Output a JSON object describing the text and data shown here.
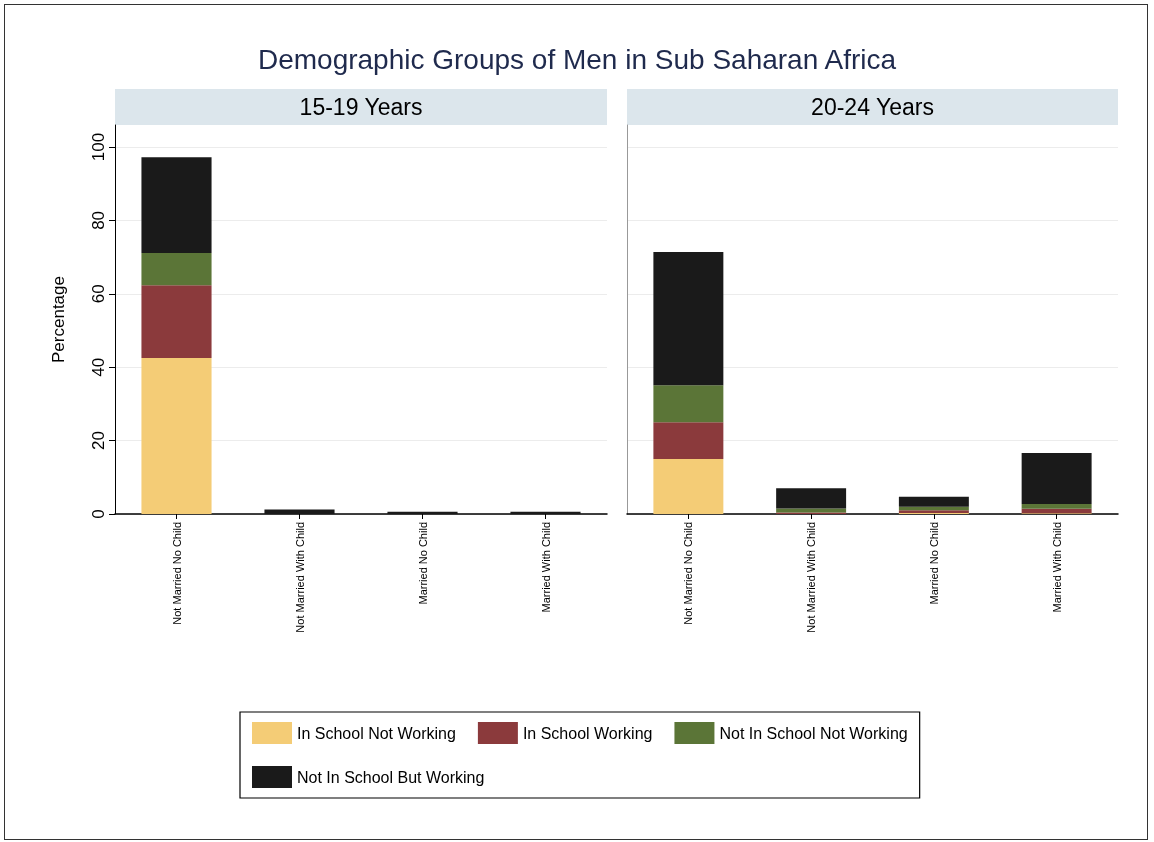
{
  "chart_data": [
    {
      "type": "bar",
      "title": "Demographic Groups of Men in Sub Saharan Africa",
      "subtitle": "15-19 Years",
      "ylabel": "Percentage",
      "stacked": true,
      "grid": "y",
      "legend": "bottom",
      "categories": [
        "Not Married No Child",
        "Not Married With Child",
        "Married No Child",
        "Married With Child"
      ],
      "ylim": [
        0,
        106
      ],
      "yticks": [
        0,
        20,
        40,
        60,
        80,
        100
      ],
      "series": [
        {
          "name": "In School Not Working",
          "color": "#f4cc76",
          "values": [
            42.5,
            0,
            0,
            0
          ]
        },
        {
          "name": "In School Working",
          "color": "#8b3a3c",
          "values": [
            19.8,
            0,
            0,
            0
          ]
        },
        {
          "name": "Not In School Not Working",
          "color": "#5b7537",
          "values": [
            8.8,
            0,
            0,
            0
          ]
        },
        {
          "name": "Not In School But Working",
          "color": "#1a1a1a",
          "values": [
            26.1,
            1.2,
            0.6,
            0.6
          ]
        }
      ]
    },
    {
      "type": "bar",
      "subtitle": "20-24 Years",
      "stacked": true,
      "grid": "y",
      "tick_labels": "x",
      "categories": [
        "Not Married No Child",
        "Not Married With Child",
        "Married No Child",
        "Married With Child"
      ],
      "ylim": [
        0,
        106
      ],
      "yticks": [
        0,
        20,
        40,
        60,
        80,
        100
      ],
      "series": [
        {
          "color": "#f4cc76",
          "values": [
            15.0,
            0,
            0.3,
            0.2
          ]
        },
        {
          "color": "#8b3a3c",
          "values": [
            10.0,
            0.4,
            0.7,
            1.2
          ]
        },
        {
          "color": "#5b7537",
          "values": [
            10.1,
            1.1,
            1.0,
            1.3
          ]
        },
        {
          "color": "#1a1a1a",
          "values": [
            36.3,
            5.5,
            2.7,
            13.9
          ]
        }
      ]
    }
  ]
}
